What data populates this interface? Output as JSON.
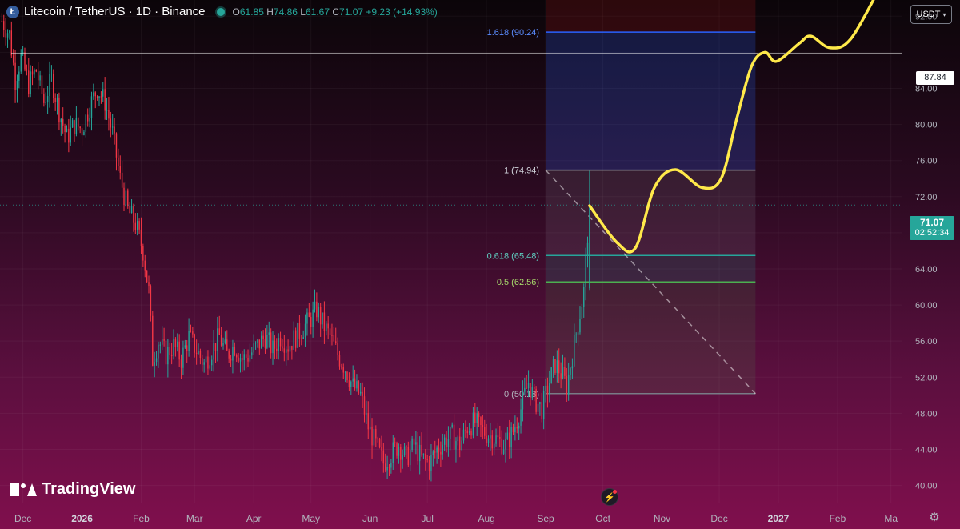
{
  "legend": {
    "symbol_icon": "litecoin-icon",
    "title": "Litecoin / TetherUS · 1D · Binance",
    "status_icon": "market-open-dot-icon",
    "open_label": "O",
    "open": "61.85",
    "high_label": "H",
    "high": "74.86",
    "low_label": "L",
    "low": "61.67",
    "close_label": "C",
    "close": "71.07",
    "change": "+9.23 (+14.93%)"
  },
  "currency": {
    "label": "USDT",
    "icon": "chevron-down-icon"
  },
  "price_tags": {
    "horizontal_line": "87.84",
    "last_price": "71.07",
    "countdown": "02:52:34"
  },
  "logo": {
    "text": "TradingView",
    "icon": "tradingview-logo-icon"
  },
  "buttons": {
    "flash_icon": "lightning-icon",
    "settings_icon": "gear-icon"
  },
  "colors": {
    "up": "#26a69a",
    "down": "#f23645",
    "projection": "#ffe94a",
    "horizontal_line": "#ffffff",
    "fib_1618": "#2962ff",
    "fib_1": "#9598a1",
    "fib_0618": "#26a69a",
    "fib_05": "#4caf50",
    "fib_0": "#787b86"
  },
  "chart_data": {
    "type": "candlestick",
    "title": "Litecoin / TetherUS · 1D · Binance",
    "y_axis": {
      "ticks": [
        92,
        88,
        84,
        80,
        76,
        72,
        68,
        64,
        60,
        56,
        52,
        48,
        44,
        40
      ],
      "tick_labels": [
        "92.00",
        "",
        "84.00",
        "80.00",
        "76.00",
        "72.00",
        "68.00",
        "64.00",
        "60.00",
        "56.00",
        "52.00",
        "48.00",
        "44.00",
        "40.00"
      ],
      "range": [
        38.1,
        93.8
      ],
      "scale": "linear"
    },
    "x_axis": {
      "ticks": [
        "2025-12-01",
        "2026-01-01",
        "2026-02-01",
        "2026-03-01",
        "2026-04-01",
        "2026-05-01",
        "2026-06-01",
        "2026-07-01",
        "2026-08-01",
        "2026-09-01",
        "2026-10-01",
        "2026-11-01",
        "2026-12-01",
        "2027-01-01",
        "2027-02-01",
        "2027-03-01"
      ],
      "tick_labels": [
        "Dec",
        "2026",
        "Feb",
        "Mar",
        "Apr",
        "May",
        "Jun",
        "Jul",
        "Aug",
        "Sep",
        "Oct",
        "Nov",
        "Dec",
        "2027",
        "Feb",
        "Ma"
      ],
      "range": [
        "2025-11-19",
        "2027-03-07"
      ]
    },
    "grid": true,
    "price_path": [
      [
        "2025-11-20",
        91.5
      ],
      [
        "2025-11-24",
        90.0
      ],
      [
        "2025-11-27",
        85.0
      ],
      [
        "2025-11-30",
        87.5
      ],
      [
        "2025-12-04",
        84.5
      ],
      [
        "2025-12-08",
        86.0
      ],
      [
        "2025-12-12",
        82.5
      ],
      [
        "2025-12-16",
        85.0
      ],
      [
        "2025-12-20",
        81.5
      ],
      [
        "2025-12-24",
        78.5
      ],
      [
        "2025-12-28",
        80.0
      ],
      [
        "2026-01-01",
        79.5
      ],
      [
        "2026-01-05",
        82.0
      ],
      [
        "2026-01-09",
        84.0
      ],
      [
        "2026-01-13",
        82.5
      ],
      [
        "2026-01-17",
        79.0
      ],
      [
        "2026-01-21",
        74.0
      ],
      [
        "2026-01-25",
        70.5
      ],
      [
        "2026-01-29",
        69.0
      ],
      [
        "2026-02-02",
        66.0
      ],
      [
        "2026-02-05",
        61.5
      ],
      [
        "2026-02-07",
        54.0
      ],
      [
        "2026-02-10",
        56.0
      ],
      [
        "2026-02-14",
        54.5
      ],
      [
        "2026-02-18",
        55.5
      ],
      [
        "2026-02-22",
        54.0
      ],
      [
        "2026-02-26",
        56.5
      ],
      [
        "2026-03-02",
        55.0
      ],
      [
        "2026-03-06",
        53.5
      ],
      [
        "2026-03-10",
        55.0
      ],
      [
        "2026-03-14",
        56.5
      ],
      [
        "2026-03-18",
        54.5
      ],
      [
        "2026-03-22",
        55.5
      ],
      [
        "2026-03-26",
        54.0
      ],
      [
        "2026-03-30",
        54.5
      ],
      [
        "2026-04-03",
        55.5
      ],
      [
        "2026-04-07",
        56.5
      ],
      [
        "2026-04-11",
        55.0
      ],
      [
        "2026-04-15",
        56.5
      ],
      [
        "2026-04-19",
        55.5
      ],
      [
        "2026-04-23",
        56.5
      ],
      [
        "2026-04-27",
        57.5
      ],
      [
        "2026-05-01",
        58.5
      ],
      [
        "2026-05-04",
        59.5
      ],
      [
        "2026-05-07",
        58.0
      ],
      [
        "2026-05-11",
        56.5
      ],
      [
        "2026-05-15",
        54.5
      ],
      [
        "2026-05-19",
        53.0
      ],
      [
        "2026-05-23",
        51.0
      ],
      [
        "2026-05-27",
        50.0
      ],
      [
        "2026-05-31",
        46.5
      ],
      [
        "2026-06-04",
        44.5
      ],
      [
        "2026-06-08",
        42.5
      ],
      [
        "2026-06-12",
        43.5
      ],
      [
        "2026-06-16",
        44.5
      ],
      [
        "2026-06-20",
        43.0
      ],
      [
        "2026-06-24",
        44.5
      ],
      [
        "2026-06-28",
        43.0
      ],
      [
        "2026-07-02",
        42.5
      ],
      [
        "2026-07-06",
        44.0
      ],
      [
        "2026-07-10",
        45.0
      ],
      [
        "2026-07-14",
        45.5
      ],
      [
        "2026-07-18",
        44.5
      ],
      [
        "2026-07-22",
        46.5
      ],
      [
        "2026-07-26",
        47.0
      ],
      [
        "2026-07-30",
        46.0
      ],
      [
        "2026-08-03",
        45.5
      ],
      [
        "2026-08-07",
        45.0
      ],
      [
        "2026-08-11",
        44.5
      ],
      [
        "2026-08-15",
        46.0
      ],
      [
        "2026-08-19",
        48.5
      ],
      [
        "2026-08-23",
        51.5
      ],
      [
        "2026-08-26",
        49.5
      ],
      [
        "2026-08-30",
        48.5
      ],
      [
        "2026-09-03",
        51.5
      ],
      [
        "2026-09-06",
        53.5
      ],
      [
        "2026-09-09",
        52.5
      ],
      [
        "2026-09-12",
        51.0
      ],
      [
        "2026-09-15",
        54.5
      ],
      [
        "2026-09-18",
        58.0
      ],
      [
        "2026-09-21",
        61.5
      ],
      [
        "2026-09-24",
        71.07
      ]
    ],
    "candle_volatility": "high",
    "fibonacci": {
      "start_date": "2026-09-01",
      "end_date": "2026-12-20",
      "levels": [
        {
          "ratio": "1.618",
          "value": 90.24,
          "label": "1.618 (90.24)"
        },
        {
          "ratio": "1",
          "value": 74.94,
          "label": "1 (74.94)"
        },
        {
          "ratio": "0.618",
          "value": 65.48,
          "label": "0.618 (65.48)"
        },
        {
          "ratio": "0.5",
          "value": 62.56,
          "label": "0.5 (62.56)"
        },
        {
          "ratio": "0",
          "value": 50.18,
          "label": "0 (50.18)"
        }
      ],
      "trend_line": [
        [
          "2026-09-01",
          74.94
        ],
        [
          "2026-12-20",
          50.18
        ]
      ]
    },
    "horizontal_line": {
      "value": 87.84
    },
    "last_price": {
      "value": 71.07
    },
    "projection": [
      [
        "2026-09-24",
        71.0
      ],
      [
        "2026-10-08",
        67.0
      ],
      [
        "2026-10-18",
        66.3
      ],
      [
        "2026-10-28",
        73.0
      ],
      [
        "2026-11-08",
        75.0
      ],
      [
        "2026-11-22",
        73.0
      ],
      [
        "2026-12-02",
        74.0
      ],
      [
        "2026-12-10",
        80.5
      ],
      [
        "2026-12-18",
        86.5
      ],
      [
        "2026-12-25",
        88.0
      ],
      [
        "2026-12-31",
        87.0
      ],
      [
        "2027-01-12",
        89.0
      ],
      [
        "2027-01-18",
        89.8
      ],
      [
        "2027-01-28",
        88.5
      ],
      [
        "2027-02-08",
        89.5
      ],
      [
        "2027-02-24",
        95.5
      ]
    ]
  }
}
